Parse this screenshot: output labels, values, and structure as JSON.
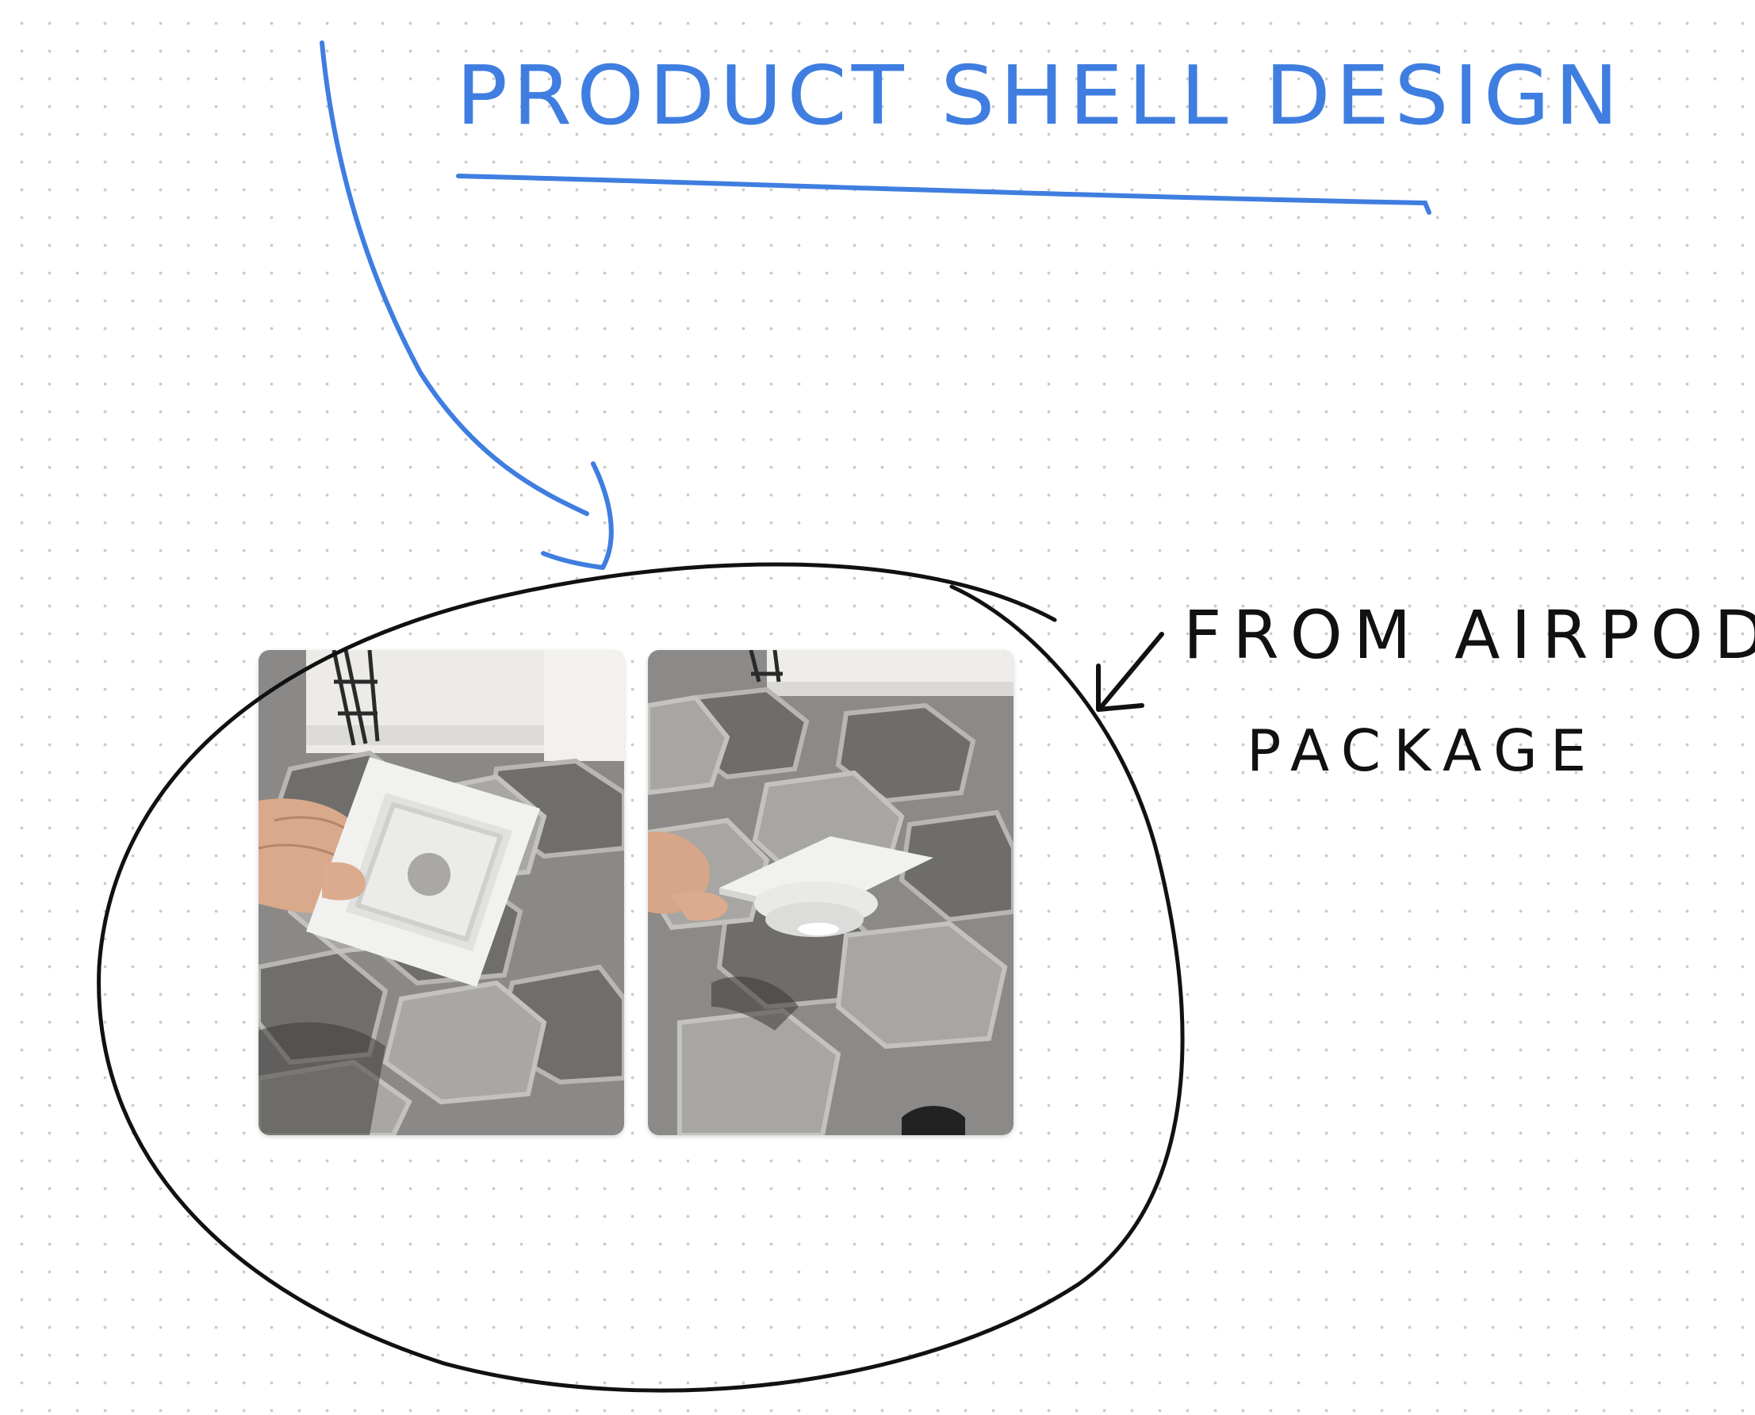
{
  "canvas": {
    "background": "#ffffff",
    "grid_dot_color": "#c9c9c9"
  },
  "title": {
    "text": "PRODUCT SHELL DESIGN",
    "color": "#3f7ee0"
  },
  "annotation": {
    "line1": "FROM AIRPOD",
    "line2": "PACKAGE",
    "color": "#111111"
  },
  "photos": [
    {
      "name": "airpod-tray-front-photo",
      "subject": "hand holding white molded tray, top view"
    },
    {
      "name": "airpod-tray-side-photo",
      "subject": "hand holding white molded tray, underside view"
    }
  ],
  "icons": {
    "title_arrow": "curved-arrow-down-icon",
    "note_arrow": "arrow-down-left-icon"
  }
}
